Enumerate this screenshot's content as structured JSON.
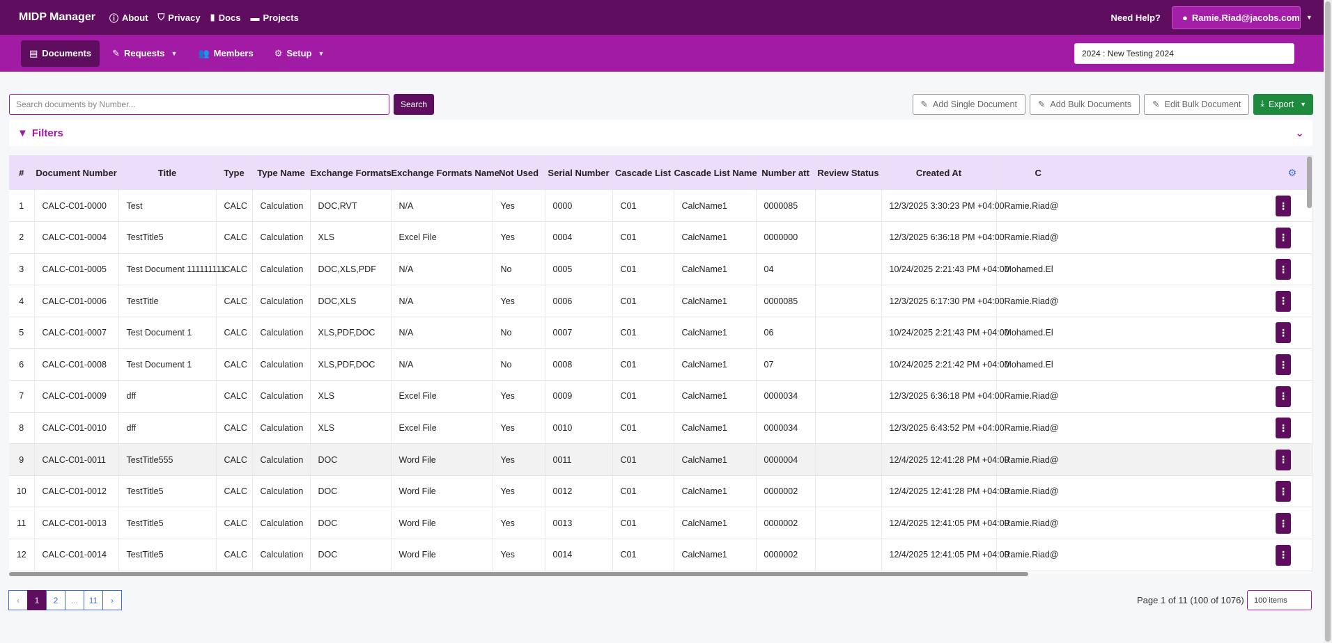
{
  "topbar": {
    "brand": "MIDP Manager",
    "links": [
      {
        "icon": "info-icon",
        "label": "About"
      },
      {
        "icon": "shield-icon",
        "label": "Privacy"
      },
      {
        "icon": "book-icon",
        "label": "Docs"
      },
      {
        "icon": "folder-icon",
        "label": "Projects"
      }
    ],
    "need_help": "Need Help?",
    "user": "Ramie.Riad@jacobs.com"
  },
  "subnav": {
    "items": [
      {
        "label": "Documents",
        "icon": "file-icon",
        "active": true
      },
      {
        "label": "Requests",
        "icon": "edit-icon",
        "dropdown": true
      },
      {
        "label": "Members",
        "icon": "users-icon"
      },
      {
        "label": "Setup",
        "icon": "gear-icon",
        "dropdown": true
      }
    ],
    "project": "2024 : New Testing 2024"
  },
  "search": {
    "placeholder": "Search documents by Number...",
    "button": "Search"
  },
  "actions": {
    "add_single": "Add Single Document",
    "add_bulk": "Add Bulk Documents",
    "edit_bulk": "Edit Bulk Document",
    "export": "Export"
  },
  "filters": {
    "label": "Filters"
  },
  "table": {
    "columns": [
      "#",
      "Document Number",
      "Title",
      "Type",
      "Type Name",
      "Exchange Formats",
      "Exchange Formats Name",
      "Not Used",
      "Serial Number",
      "Cascade List",
      "Cascade List Name",
      "Number att",
      "Review Status",
      "Created At",
      "C"
    ],
    "rows": [
      [
        "1",
        "CALC-C01-0000",
        "Test",
        "CALC",
        "Calculation",
        "DOC,RVT",
        "N/A",
        "Yes",
        "0000",
        "C01",
        "CalcName1",
        "0000085",
        "",
        "12/3/2025 3:30:23 PM +04:00",
        "Ramie.Riad@"
      ],
      [
        "2",
        "CALC-C01-0004",
        "TestTitle5",
        "CALC",
        "Calculation",
        "XLS",
        "Excel File",
        "Yes",
        "0004",
        "C01",
        "CalcName1",
        "0000000",
        "",
        "12/3/2025 6:36:18 PM +04:00",
        "Ramie.Riad@"
      ],
      [
        "3",
        "CALC-C01-0005",
        "Test Document 111111111",
        "CALC",
        "Calculation",
        "DOC,XLS,PDF",
        "N/A",
        "No",
        "0005",
        "C01",
        "CalcName1",
        "04",
        "",
        "10/24/2025 2:21:43 PM +04:00",
        "Mohamed.El"
      ],
      [
        "4",
        "CALC-C01-0006",
        "TestTitle",
        "CALC",
        "Calculation",
        "DOC,XLS",
        "N/A",
        "Yes",
        "0006",
        "C01",
        "CalcName1",
        "0000085",
        "",
        "12/3/2025 6:17:30 PM +04:00",
        "Ramie.Riad@"
      ],
      [
        "5",
        "CALC-C01-0007",
        "Test Document 1",
        "CALC",
        "Calculation",
        "XLS,PDF,DOC",
        "N/A",
        "No",
        "0007",
        "C01",
        "CalcName1",
        "06",
        "",
        "10/24/2025 2:21:43 PM +04:00",
        "Mohamed.El"
      ],
      [
        "6",
        "CALC-C01-0008",
        "Test Document 1",
        "CALC",
        "Calculation",
        "XLS,PDF,DOC",
        "N/A",
        "No",
        "0008",
        "C01",
        "CalcName1",
        "07",
        "",
        "10/24/2025 2:21:42 PM +04:00",
        "Mohamed.El"
      ],
      [
        "7",
        "CALC-C01-0009",
        "dff",
        "CALC",
        "Calculation",
        "XLS",
        "Excel File",
        "Yes",
        "0009",
        "C01",
        "CalcName1",
        "0000034",
        "",
        "12/3/2025 6:36:18 PM +04:00",
        "Ramie.Riad@"
      ],
      [
        "8",
        "CALC-C01-0010",
        "dff",
        "CALC",
        "Calculation",
        "XLS",
        "Excel File",
        "Yes",
        "0010",
        "C01",
        "CalcName1",
        "0000034",
        "",
        "12/3/2025 6:43:52 PM +04:00",
        "Ramie.Riad@"
      ],
      [
        "9",
        "CALC-C01-0011",
        "TestTitle555",
        "CALC",
        "Calculation",
        "DOC",
        "Word File",
        "Yes",
        "0011",
        "C01",
        "CalcName1",
        "0000004",
        "",
        "12/4/2025 12:41:28 PM +04:00",
        "Ramie.Riad@"
      ],
      [
        "10",
        "CALC-C01-0012",
        "TestTitle5",
        "CALC",
        "Calculation",
        "DOC",
        "Word File",
        "Yes",
        "0012",
        "C01",
        "CalcName1",
        "0000002",
        "",
        "12/4/2025 12:41:28 PM +04:00",
        "Ramie.Riad@"
      ],
      [
        "11",
        "CALC-C01-0013",
        "TestTitle5",
        "CALC",
        "Calculation",
        "DOC",
        "Word File",
        "Yes",
        "0013",
        "C01",
        "CalcName1",
        "0000002",
        "",
        "12/4/2025 12:41:05 PM +04:00",
        "Ramie.Riad@"
      ],
      [
        "12",
        "CALC-C01-0014",
        "TestTitle5",
        "CALC",
        "Calculation",
        "DOC",
        "Word File",
        "Yes",
        "0014",
        "C01",
        "CalcName1",
        "0000002",
        "",
        "12/4/2025 12:41:05 PM +04:00",
        "Ramie.Riad@"
      ]
    ]
  },
  "pagination": {
    "pages": [
      "1",
      "2",
      "...",
      "11"
    ],
    "current": "1",
    "info": "Page 1 of 11 (100 of 1076)",
    "items_per_page": "100 items"
  }
}
